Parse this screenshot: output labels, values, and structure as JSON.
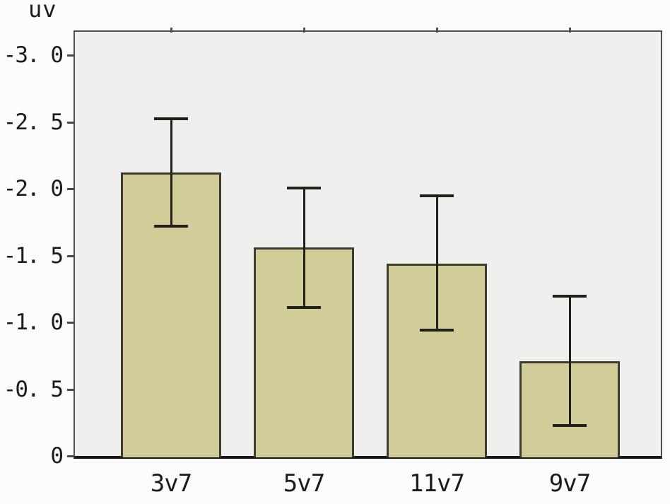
{
  "figure": {
    "y_axis_unit": "uv"
  },
  "chart_data": {
    "type": "bar",
    "title": "",
    "xlabel": "",
    "ylabel": "uv",
    "categories": [
      "3v7",
      "5v7",
      "11v7",
      "9v7"
    ],
    "values": [
      -2.12,
      -1.56,
      -1.44,
      -0.71
    ],
    "error_bars": {
      "upper": [
        -2.53,
        -2.01,
        -1.95,
        -1.2
      ],
      "lower": [
        -1.72,
        -1.11,
        -0.94,
        -0.23
      ]
    },
    "yticks": [
      {
        "value": -3.0,
        "label": "-3. 0"
      },
      {
        "value": -2.5,
        "label": "-2. 5"
      },
      {
        "value": -2.0,
        "label": "-2. 0"
      },
      {
        "value": -1.5,
        "label": "-1. 5"
      },
      {
        "value": -1.0,
        "label": "-1. 0"
      },
      {
        "value": -0.5,
        "label": "-0. 5"
      },
      {
        "value": 0,
        "label": "0"
      }
    ],
    "ylim": [
      0,
      -3.17
    ],
    "axis_inverted": true,
    "grid": false,
    "legend": "none",
    "error_cap_style": "T-caps top and bottom",
    "colors": {
      "bar_fill": "#d2cd98",
      "bar_border": "#3f3e2e",
      "error_bar": "#21211a",
      "plot_background": "#efefed",
      "plot_border": "#4f4f4f",
      "axis_line": "#161616",
      "tick_mark": "#4a4a4a",
      "text": "#1c1c1c",
      "figure_background": "#fcfcfc"
    }
  }
}
